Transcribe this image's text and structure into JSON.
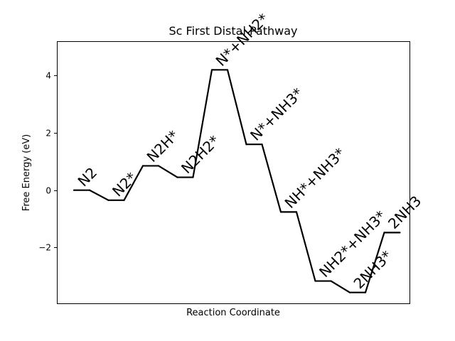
{
  "chart_data": {
    "type": "line",
    "title": "Sc First Distal Pathway",
    "xlabel": "Reaction Coordinate",
    "ylabel": "Free Energy (eV)",
    "ylim": [
      -3.95,
      5.2
    ],
    "yticks": [
      -2,
      0,
      2,
      4
    ],
    "ytick_labels": [
      "−2",
      "0",
      "2",
      "4"
    ],
    "grid": false,
    "line_color": "#000000",
    "steps": [
      {
        "label": "N2",
        "energy": 0.0
      },
      {
        "label": "N2*",
        "energy": -0.35
      },
      {
        "label": "N2H*",
        "energy": 0.85
      },
      {
        "label": "N2H2*",
        "energy": 0.45
      },
      {
        "label": "N*+NH2*",
        "energy": 4.2
      },
      {
        "label": "N*+NH3*",
        "energy": 1.6
      },
      {
        "label": "NH*+NH3*",
        "energy": -0.76
      },
      {
        "label": "NH2*+NH3*",
        "energy": -3.17
      },
      {
        "label": "2NH3*",
        "energy": -3.57
      },
      {
        "label": "2NH3",
        "energy": -1.48
      }
    ]
  }
}
